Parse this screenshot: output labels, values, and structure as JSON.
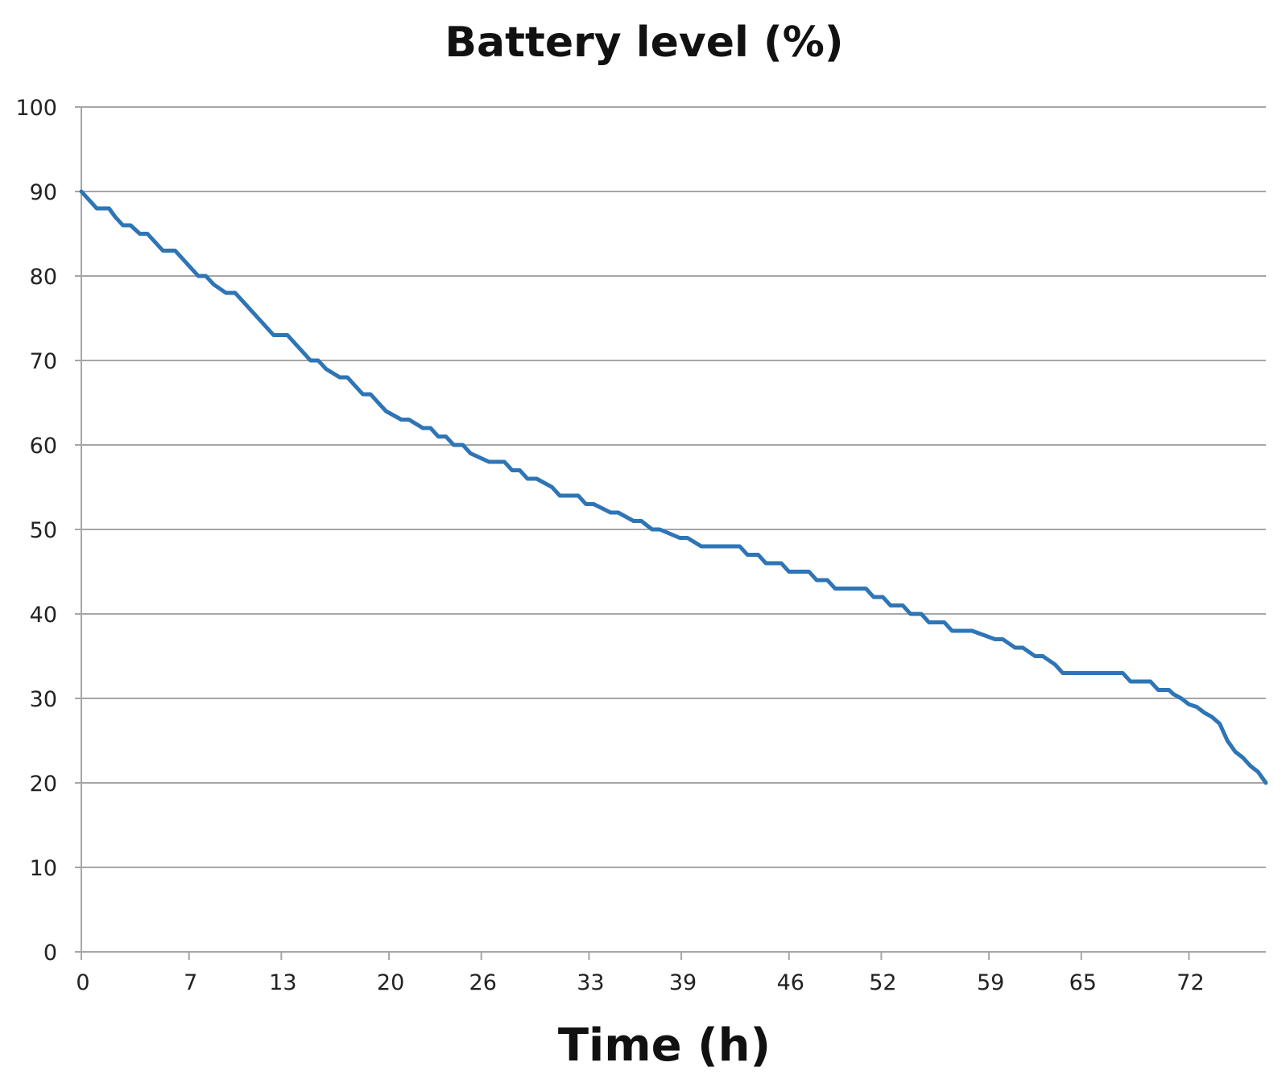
{
  "chart_data": {
    "type": "line",
    "title": "Battery level (%)",
    "xlabel": "Time (h)",
    "ylabel": "",
    "xlim": [
      0,
      77
    ],
    "ylim": [
      0,
      100
    ],
    "x_ticks": [
      0,
      7,
      13,
      20,
      26,
      33,
      39,
      46,
      52,
      59,
      65,
      72
    ],
    "y_ticks": [
      0,
      10,
      20,
      30,
      40,
      50,
      60,
      70,
      80,
      90,
      100
    ],
    "grid": "horizontal",
    "legend": "none",
    "line_color": "#2e75b6",
    "grid_color": "#a6a6a6",
    "series": [
      {
        "x": [
          0,
          0.5,
          1,
          1.8,
          2.2,
          2.7,
          3.2,
          3.8,
          4.3,
          4.8,
          5.3,
          6.1,
          6.6,
          7.1,
          7.6,
          8.1,
          8.6,
          9.4,
          10.0,
          10.5,
          11.0,
          11.5,
          12.0,
          12.5,
          13.4,
          13.9,
          14.4,
          14.9,
          15.4,
          15.9,
          16.8,
          17.3,
          17.8,
          18.3,
          18.8,
          19.3,
          19.8,
          20.8,
          21.3,
          22.2,
          22.7,
          23.2,
          23.7,
          24.2,
          24.8,
          25.3,
          26.5,
          27.0,
          27.5,
          28.0,
          28.5,
          29.0,
          29.6,
          30.6,
          31.1,
          32.3,
          32.8,
          33.3,
          34.4,
          34.9,
          35.9,
          36.4,
          37.1,
          37.6,
          38.9,
          39.4,
          40.3,
          40.8,
          42.8,
          43.3,
          44.0,
          44.5,
          45.5,
          46.0,
          47.3,
          47.8,
          48.5,
          49.0,
          51.0,
          51.5,
          52.1,
          52.6,
          53.4,
          53.9,
          54.6,
          55.1,
          56.1,
          56.6,
          57.4,
          57.9,
          59.4,
          59.9,
          60.7,
          61.2,
          62.0,
          62.5,
          63.3,
          63.8,
          65.5,
          66.0,
          67.7,
          68.2,
          69.5,
          70.0,
          70.7,
          71.0,
          71.5,
          72.0,
          72.5,
          73.0,
          73.5,
          74.0,
          74.5,
          75.0,
          75.5,
          76.0,
          76.5,
          77.0
        ],
        "y": [
          90,
          89,
          88,
          88,
          87,
          86,
          86,
          85,
          85,
          84,
          83,
          83,
          82,
          81,
          80,
          80,
          79,
          78,
          78,
          77,
          76,
          75,
          74,
          73,
          73,
          72,
          71,
          70,
          70,
          69,
          68,
          68,
          67,
          66,
          66,
          65,
          64,
          63,
          63,
          62,
          62,
          61,
          61,
          60,
          60,
          59,
          58,
          58,
          58,
          57,
          57,
          56,
          56,
          55,
          54,
          54,
          53,
          53,
          52,
          52,
          51,
          51,
          50,
          50,
          49,
          49,
          48,
          48,
          48,
          47,
          47,
          46,
          46,
          45,
          45,
          44,
          44,
          43,
          43,
          42,
          42,
          41,
          41,
          40,
          40,
          39,
          39,
          38,
          38,
          38,
          37,
          37,
          36,
          36,
          35,
          35,
          34,
          33,
          33,
          33,
          33,
          32,
          32,
          31,
          31,
          30.5,
          30,
          29.3,
          29,
          28.3,
          27.8,
          27,
          25,
          23.7,
          23,
          22,
          21.3,
          20
        ]
      }
    ]
  }
}
